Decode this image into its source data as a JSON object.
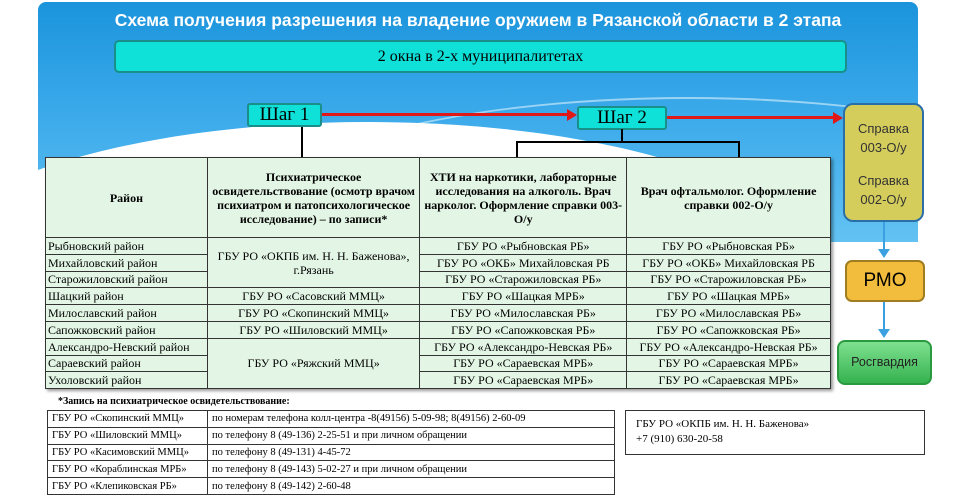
{
  "title": "Схема получения разрешения на владение оружием в Рязанской области в 2 этапа",
  "banner": "2 окна в 2-х  муниципалитетах",
  "steps": [
    "Шаг 1",
    "Шаг 2"
  ],
  "table": {
    "headers": [
      "Район",
      "Психиатрическое освидетельствование (осмотр врачом психиатром и патопсихологическое исследование) – по записи*",
      "ХТИ на наркотики, лабораторные исследования на алкоголь. Врач нарколог. Оформление справки 003-О/у",
      "Врач офтальмолог. Оформление справки 002-О/у"
    ],
    "districts": [
      "Рыбновский район",
      "Михайловский район",
      "Старожиловский район",
      "Шацкий район",
      "Милославский район",
      "Сапожковский район",
      "Александро-Невский район",
      "Сараевский район",
      "Ухоловский район"
    ],
    "psych": [
      "ГБУ РО «ОКПБ им. Н. Н. Баженова», г.Рязань",
      "ГБУ РО «Сасовский ММЦ»",
      "ГБУ РО «Скопинский ММЦ»",
      "ГБУ РО «Шиловский ММЦ»",
      "ГБУ РО «Ряжский ММЦ»"
    ],
    "narco": [
      "ГБУ РО «Рыбновская РБ»",
      "ГБУ РО «ОКБ» Михайловская РБ",
      "ГБУ РО «Старожиловская РБ»",
      "ГБУ РО «Шацкая МРБ»",
      "ГБУ РО «Милославская РБ»",
      "ГБУ РО «Сапожковская РБ»",
      "ГБУ РО «Александро-Невская РБ»",
      "ГБУ РО «Сараевская МРБ»",
      "ГБУ РО «Сараевская МРБ»"
    ],
    "ophth": [
      "ГБУ РО «Рыбновская РБ»",
      "ГБУ РО «ОКБ» Михайловская РБ",
      "ГБУ РО «Старожиловская РБ»",
      "ГБУ РО «Шацкая МРБ»",
      "ГБУ РО «Милославская РБ»",
      "ГБУ РО «Сапожковская РБ»",
      "ГБУ РО «Александро-Невская РБ»",
      "ГБУ РО «Сараевская МРБ»",
      "ГБУ РО «Сараевская МРБ»"
    ]
  },
  "flow": {
    "certs": [
      "Справка 003-О/у",
      "Справка 002-О/у"
    ],
    "rmo": "РМО",
    "rosgvardia": "Росгвардия"
  },
  "note": "*Запись на психиатрическое освидетельствование:",
  "appointments": [
    {
      "org": "ГБУ РО «Скопинский ММЦ»",
      "info": "по номерам  телефона колл-центра -8(49156) 5-09-98; 8(49156) 2-60-09"
    },
    {
      "org": "ГБУ РО «Шиловский ММЦ»",
      "info": "по телефону 8 (49-136) 2-25-51 и при личном обращении"
    },
    {
      "org": "ГБУ РО «Касимовский ММЦ»",
      "info": "по телефону 8 (49-131) 4-45-72"
    },
    {
      "org": "ГБУ РО «Кораблинская МРБ»",
      "info": "по телефону 8 (49-143) 5-02-27 и при личном обращении"
    },
    {
      "org": "ГБУ РО «Клепиковская РБ»",
      "info": "по телефону 8 (49-142) 2-60-48"
    }
  ],
  "contact": {
    "org": "ГБУ РО «ОКПБ им. Н. Н. Баженова»",
    "phone": "+7 (910) 630-20-58"
  },
  "colors": {
    "banner": "#0fe0d8",
    "table_bg": "#e3f6e5",
    "cert_box": "#d4cd5c",
    "rmo_box": "#f2bd3c",
    "rosgvardia_box": "#4cc765",
    "arrow_red": "#e01818",
    "arrow_blue": "#3aa0e0"
  }
}
